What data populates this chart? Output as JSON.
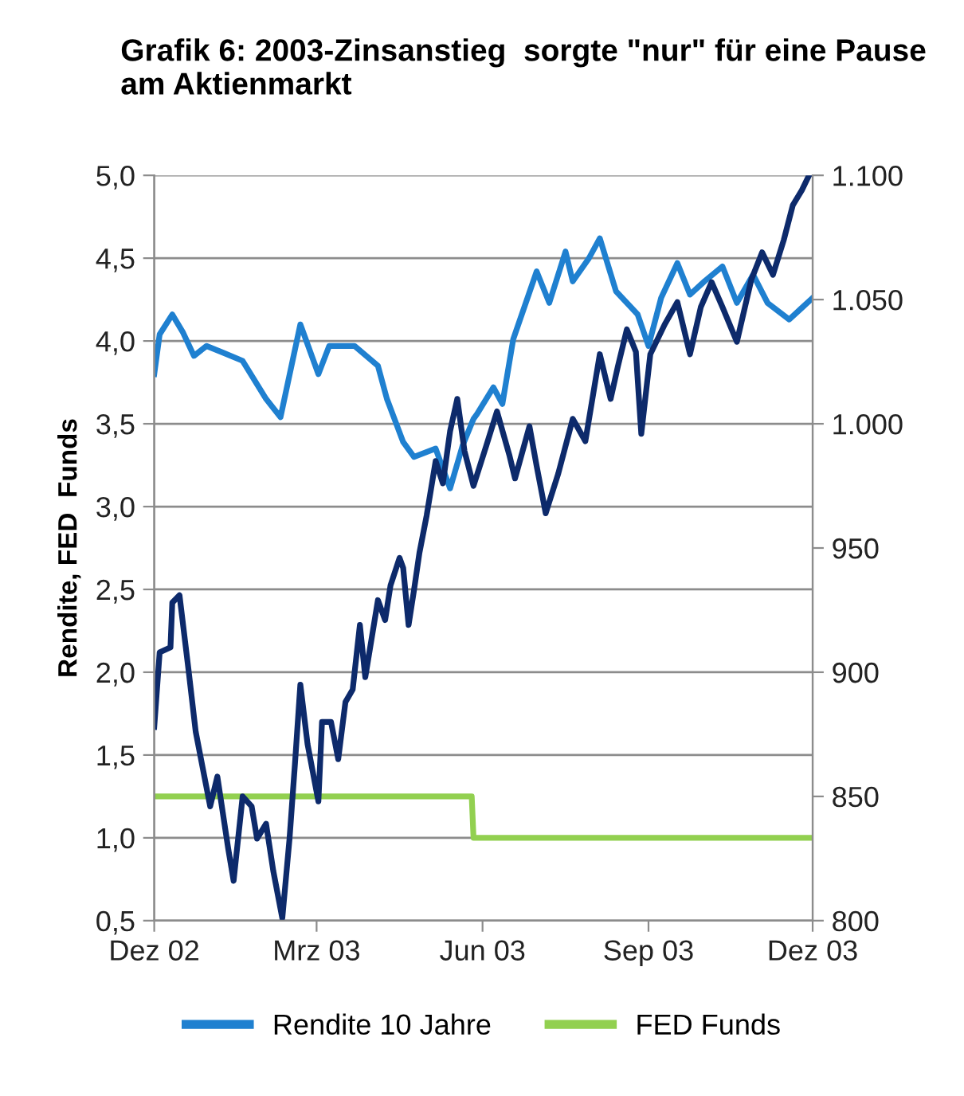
{
  "chart_data": {
    "type": "line",
    "title": "Grafik 6: 2003-Zinsanstieg  sorgte \"nur\" für eine Pause am Aktienmarkt",
    "ylabel": "Rendite, FED  Funds",
    "xlim": [
      "2002-12-01",
      "2003-12-01"
    ],
    "xticks": [
      {
        "value": "2002-12-01",
        "label": "Dez 02"
      },
      {
        "value": "2003-03-01",
        "label": "Mrz 03"
      },
      {
        "value": "2003-06-01",
        "label": "Jun 03"
      },
      {
        "value": "2003-09-01",
        "label": "Sep 03"
      },
      {
        "value": "2003-12-01",
        "label": "Dez 03"
      }
    ],
    "ylim": [
      0.5,
      5.0
    ],
    "yticks": [
      {
        "value": 0.5,
        "label": "0,5"
      },
      {
        "value": 1.0,
        "label": "1,0"
      },
      {
        "value": 1.5,
        "label": "1,5"
      },
      {
        "value": 2.0,
        "label": "2,0"
      },
      {
        "value": 2.5,
        "label": "2,5"
      },
      {
        "value": 3.0,
        "label": "3,0"
      },
      {
        "value": 3.5,
        "label": "3,5"
      },
      {
        "value": 4.0,
        "label": "4,0"
      },
      {
        "value": 4.5,
        "label": "4,5"
      },
      {
        "value": 5.0,
        "label": "5,0"
      }
    ],
    "y2lim": [
      800,
      1100
    ],
    "y2ticks": [
      800,
      850,
      900,
      950,
      {
        "value": 1000,
        "label": "1.000"
      },
      {
        "value": 1050,
        "label": "1.050"
      },
      {
        "value": 1100,
        "label": "1.100"
      }
    ],
    "grid": "y",
    "legend": "bottom",
    "series": [
      {
        "name": "Rendite 10 Jahre",
        "color": "#1f80d0",
        "x": [
          "2002-12-01",
          "2002-12-04",
          "2002-12-11",
          "2002-12-17",
          "2002-12-23",
          "2002-12-30",
          "2003-01-08",
          "2003-01-19",
          "2003-02-01",
          "2003-02-09",
          "2003-02-20",
          "2003-03-02",
          "2003-03-08",
          "2003-03-22",
          "2003-04-04",
          "2003-04-09",
          "2003-04-18",
          "2003-04-24",
          "2003-05-06",
          "2003-05-14",
          "2003-05-21",
          "2003-05-27",
          "2003-05-29",
          "2003-06-07",
          "2003-06-12",
          "2003-06-18",
          "2003-07-01",
          "2003-07-08",
          "2003-07-17",
          "2003-07-21",
          "2003-07-30",
          "2003-08-05",
          "2003-08-14",
          "2003-08-26",
          "2003-09-01",
          "2003-09-08",
          "2003-09-17",
          "2003-09-24",
          "2003-10-02",
          "2003-10-12",
          "2003-10-20",
          "2003-10-29",
          "2003-11-06",
          "2003-11-18",
          "2003-11-25",
          "2003-12-01"
        ],
        "values": [
          3.8,
          4.04,
          4.16,
          4.05,
          3.91,
          3.97,
          3.93,
          3.88,
          3.65,
          3.54,
          4.1,
          3.8,
          3.97,
          3.97,
          3.85,
          3.65,
          3.39,
          3.3,
          3.35,
          3.11,
          3.37,
          3.53,
          3.56,
          3.72,
          3.62,
          4.01,
          4.42,
          4.23,
          4.54,
          4.36,
          4.5,
          4.62,
          4.3,
          4.16,
          3.97,
          4.26,
          4.47,
          4.28,
          4.36,
          4.45,
          4.23,
          4.4,
          4.23,
          4.13,
          4.2,
          4.26
        ]
      },
      {
        "name": "FED Funds",
        "color": "#92d050",
        "x": [
          "2002-12-01",
          "2003-05-26",
          "2003-05-27",
          "2003-12-01"
        ],
        "values": [
          1.25,
          1.25,
          1.0,
          1.0
        ]
      },
      {
        "color": "#0d2a6b",
        "axis": "y2",
        "x": [
          "2002-12-01",
          "2002-12-04",
          "2002-12-10",
          "2002-12-11",
          "2002-12-15",
          "2002-12-20",
          "2002-12-24",
          "2002-12-28",
          "2003-01-01",
          "2003-01-05",
          "2003-01-11",
          "2003-01-14",
          "2003-01-19",
          "2003-01-24",
          "2003-01-27",
          "2003-02-01",
          "2003-02-05",
          "2003-02-10",
          "2003-02-14",
          "2003-02-17",
          "2003-02-20",
          "2003-02-24",
          "2003-03-02",
          "2003-03-04",
          "2003-03-09",
          "2003-03-13",
          "2003-03-17",
          "2003-03-21",
          "2003-03-25",
          "2003-03-28",
          "2003-04-04",
          "2003-04-08",
          "2003-04-11",
          "2003-04-16",
          "2003-04-18",
          "2003-04-21",
          "2003-04-24",
          "2003-04-27",
          "2003-05-01",
          "2003-05-06",
          "2003-05-10",
          "2003-05-14",
          "2003-05-18",
          "2003-05-22",
          "2003-05-27",
          "2003-06-03",
          "2003-06-09",
          "2003-06-16",
          "2003-06-19",
          "2003-06-27",
          "2003-07-01",
          "2003-07-06",
          "2003-07-13",
          "2003-07-21",
          "2003-07-28",
          "2003-08-05",
          "2003-08-11",
          "2003-08-15",
          "2003-08-20",
          "2003-08-25",
          "2003-08-28",
          "2003-09-02",
          "2003-09-10",
          "2003-09-17",
          "2003-09-24",
          "2003-09-30",
          "2003-10-06",
          "2003-10-12",
          "2003-10-20",
          "2003-10-28",
          "2003-11-03",
          "2003-11-09",
          "2003-11-15",
          "2003-11-20",
          "2003-11-25",
          "2003-11-29"
        ],
        "values": [
          878,
          908,
          910,
          928,
          931,
          901,
          876,
          861,
          846,
          858,
          829,
          816,
          850,
          846,
          833,
          839,
          820,
          801,
          833,
          863,
          895,
          871,
          848,
          880,
          880,
          865,
          888,
          893,
          919,
          898,
          929,
          921,
          935,
          946,
          942,
          919,
          933,
          948,
          963,
          985,
          976,
          997,
          1010,
          989,
          975,
          991,
          1005,
          987,
          978,
          999,
          983,
          964,
          980,
          1002,
          993,
          1028,
          1010,
          1023,
          1038,
          1029,
          996,
          1028,
          1040,
          1049,
          1028,
          1047,
          1057,
          1047,
          1033,
          1058,
          1069,
          1060,
          1074,
          1088,
          1094,
          1100
        ]
      }
    ]
  }
}
